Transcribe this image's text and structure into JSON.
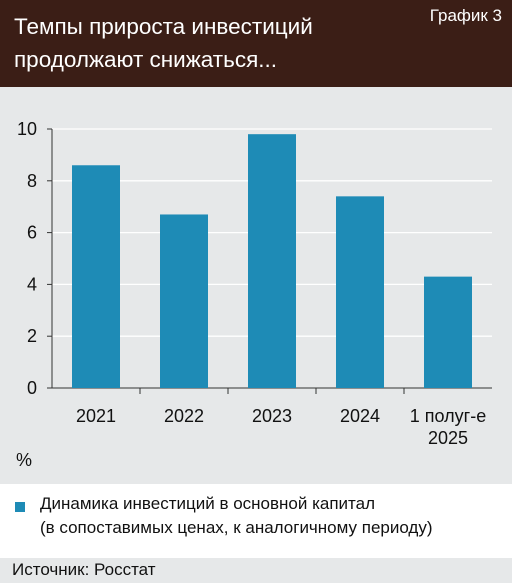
{
  "header": {
    "title": "Темпы прироста инвестиций продолжают снижаться...",
    "chart_number": "График 3"
  },
  "colors": {
    "header_bg": "#3b1e16",
    "bar": "#1e8bb6",
    "plot_bg": "#e6e8e9"
  },
  "chart_data": {
    "type": "bar",
    "categories": [
      "2021",
      "2022",
      "2023",
      "2024",
      "1 полуг-е 2025"
    ],
    "category_lines": [
      [
        "2021"
      ],
      [
        "2022"
      ],
      [
        "2023"
      ],
      [
        "2024"
      ],
      [
        "1 полуг-е",
        "2025"
      ]
    ],
    "series": [
      {
        "name": "Динамика инвестиций в основной капитал (в сопоставимых ценах, к аналогичному периоду)",
        "values": [
          8.6,
          6.7,
          9.8,
          7.4,
          4.3
        ]
      }
    ],
    "ylabel": "%",
    "ylim": [
      0,
      10
    ],
    "yticks": [
      0,
      2,
      4,
      6,
      8,
      10
    ],
    "grid": true
  },
  "legend": {
    "line1": "Динамика инвестиций в основной капитал",
    "line2": "(в сопоставимых ценах, к аналогичному периоду)"
  },
  "source": "Источник: Росстат"
}
